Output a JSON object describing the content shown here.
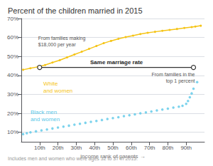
{
  "chart_data": {
    "type": "line",
    "title": "Percent of the children married in 2015",
    "x_label": "income rank of parents →",
    "footnote": "Includes men and women who were ages 32 to 37 in 2015.",
    "xlim": [
      0,
      100
    ],
    "xticks": [
      {
        "value": 10,
        "label": "10th"
      },
      {
        "value": 20,
        "label": "20th"
      },
      {
        "value": 30,
        "label": "30th"
      },
      {
        "value": 40,
        "label": "40th"
      },
      {
        "value": 50,
        "label": "50th"
      },
      {
        "value": 60,
        "label": "60th"
      },
      {
        "value": 70,
        "label": "70th"
      },
      {
        "value": 80,
        "label": "80th"
      },
      {
        "value": 90,
        "label": "90th"
      }
    ],
    "ylim": [
      5,
      70
    ],
    "yticks": [
      {
        "value": 10,
        "label": "10%"
      },
      {
        "value": 20,
        "label": "20%"
      },
      {
        "value": 30,
        "label": "30%"
      },
      {
        "value": 40,
        "label": "40%"
      },
      {
        "value": 50,
        "label": "50%"
      },
      {
        "value": 60,
        "label": "60%"
      },
      {
        "value": 70,
        "label": "70%"
      }
    ],
    "grid": true,
    "series": [
      {
        "name": "White\nand women",
        "type": "line",
        "marker": "circle",
        "color": "#F5C416",
        "x": [
          1,
          5,
          9,
          13,
          17,
          21,
          25,
          29,
          33,
          37,
          41,
          45,
          49,
          53,
          57,
          61,
          65,
          69,
          73,
          77,
          81,
          85,
          89,
          93,
          95,
          98
        ],
        "values": [
          43.0,
          43.8,
          44.5,
          45.5,
          46.8,
          48.0,
          49.5,
          51.0,
          52.5,
          54.0,
          55.5,
          57.0,
          58.2,
          59.3,
          60.2,
          61.0,
          61.8,
          62.5,
          63.0,
          63.5,
          64.0,
          64.5,
          65.0,
          65.5,
          65.8,
          66.2
        ]
      },
      {
        "name": "Black men\nand women",
        "type": "scatter",
        "marker": "circle",
        "color": "#5BC8E8",
        "x": [
          1,
          3,
          5,
          8,
          11,
          14,
          17,
          20,
          23,
          26,
          29,
          32,
          35,
          38,
          41,
          44,
          47,
          50,
          53,
          56,
          59,
          62,
          65,
          68,
          71,
          74,
          77,
          80,
          83,
          86,
          88,
          90,
          91,
          92,
          93,
          94,
          96
        ],
        "values": [
          9.0,
          9.5,
          10.0,
          10.5,
          11.0,
          11.5,
          12.0,
          12.5,
          13.0,
          13.5,
          14.0,
          14.5,
          15.0,
          15.5,
          16.0,
          16.5,
          17.0,
          17.5,
          18.0,
          18.5,
          19.0,
          19.5,
          20.0,
          20.5,
          21.0,
          21.5,
          22.0,
          22.5,
          23.0,
          23.5,
          24.0,
          25.0,
          26.5,
          28.5,
          30.5,
          33.0,
          36.5
        ]
      }
    ],
    "reference_line": {
      "y": 44.2,
      "x_start": 10,
      "x_end": 94,
      "color": "#333333",
      "label": "Same marriage rate"
    },
    "annotations": [
      "From families making\n$18,000 per year",
      "From families in the\ntop 1 percent"
    ]
  }
}
